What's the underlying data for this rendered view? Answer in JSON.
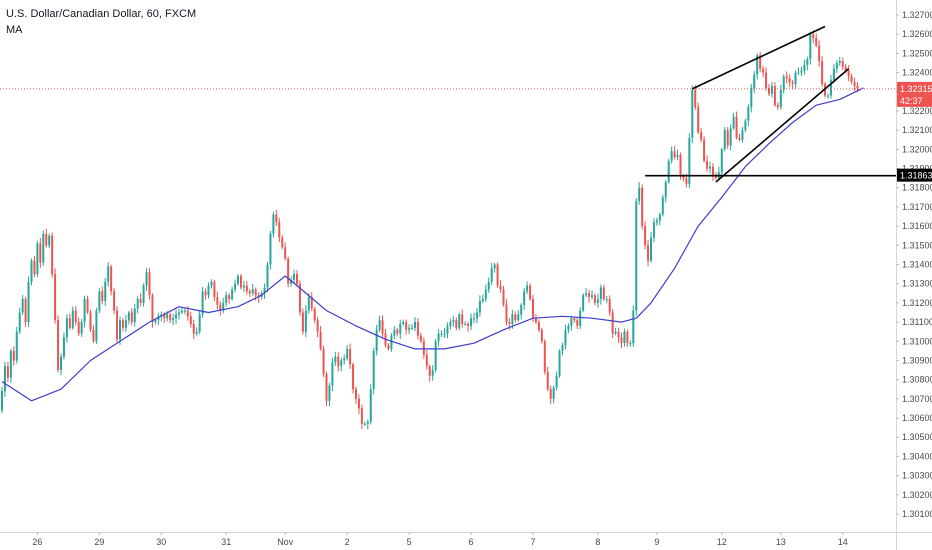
{
  "header": {
    "title": "U.S. Dollar/Canadian Dollar, 60, FXCM",
    "indicator": "MA"
  },
  "chart_data": {
    "type": "candlestick",
    "title": "U.S. Dollar/Canadian Dollar, 60, FXCM",
    "indicator": "MA",
    "ylim": [
      1.3005,
      1.3276
    ],
    "y_ticks": [
      "1.32700",
      "1.32600",
      "1.32500",
      "1.32400",
      "1.32300",
      "1.32200",
      "1.32100",
      "1.32000",
      "1.31900",
      "1.31800",
      "1.31700",
      "1.31600",
      "1.31500",
      "1.31400",
      "1.31300",
      "1.31200",
      "1.31100",
      "1.31000",
      "1.30900",
      "1.30800",
      "1.30700",
      "1.30600",
      "1.30500",
      "1.30400",
      "1.30300",
      "1.30200",
      "1.30100"
    ],
    "x_ticks": [
      {
        "label": "26",
        "bar": 12
      },
      {
        "label": "29",
        "bar": 33
      },
      {
        "label": "30",
        "bar": 54
      },
      {
        "label": "31",
        "bar": 76
      },
      {
        "label": "Nov",
        "bar": 96
      },
      {
        "label": "2",
        "bar": 117
      },
      {
        "label": "5",
        "bar": 138
      },
      {
        "label": "6",
        "bar": 159
      },
      {
        "label": "7",
        "bar": 180
      },
      {
        "label": "8",
        "bar": 202
      },
      {
        "label": "9",
        "bar": 222
      },
      {
        "label": "12",
        "bar": 244
      },
      {
        "label": "13",
        "bar": 264
      },
      {
        "label": "14",
        "bar": 285
      }
    ],
    "closes": [
      1.3074,
      1.3087,
      1.3081,
      1.3095,
      1.309,
      1.3105,
      1.3115,
      1.3122,
      1.311,
      1.3131,
      1.3142,
      1.3135,
      1.3151,
      1.3141,
      1.3156,
      1.315,
      1.3155,
      1.3135,
      1.3111,
      1.3085,
      1.3092,
      1.3102,
      1.3112,
      1.3107,
      1.3116,
      1.311,
      1.3104,
      1.311,
      1.3122,
      1.3115,
      1.3106,
      1.31,
      1.3116,
      1.3126,
      1.3121,
      1.3131,
      1.3139,
      1.3126,
      1.3116,
      1.3101,
      1.3111,
      1.3107,
      1.3111,
      1.3115,
      1.311,
      1.3117,
      1.3122,
      1.312,
      1.3129,
      1.3136,
      1.3124,
      1.311,
      1.3111,
      1.3113,
      1.3114,
      1.3112,
      1.3114,
      1.3111,
      1.3112,
      1.3114,
      1.3115,
      1.3116,
      1.3116,
      1.3113,
      1.3109,
      1.3104,
      1.3105,
      1.3114,
      1.3126,
      1.3124,
      1.3129,
      1.3131,
      1.3123,
      1.3119,
      1.3116,
      1.312,
      1.3124,
      1.3122,
      1.3127,
      1.313,
      1.3134,
      1.3128,
      1.3129,
      1.3126,
      1.3125,
      1.3127,
      1.3124,
      1.3123,
      1.3125,
      1.3128,
      1.314,
      1.3156,
      1.3166,
      1.3162,
      1.3154,
      1.3149,
      1.3143,
      1.313,
      1.3132,
      1.3135,
      1.313,
      1.3115,
      1.3105,
      1.3116,
      1.3123,
      1.3117,
      1.3111,
      1.3105,
      1.3096,
      1.3083,
      1.3069,
      1.3077,
      1.3089,
      1.3092,
      1.3087,
      1.309,
      1.3091,
      1.3096,
      1.3088,
      1.3075,
      1.307,
      1.3065,
      1.3057,
      1.3057,
      1.3058,
      1.3075,
      1.3095,
      1.3106,
      1.3111,
      1.3104,
      1.3098,
      1.3096,
      1.3103,
      1.3106,
      1.3104,
      1.3109,
      1.311,
      1.3106,
      1.3107,
      1.3107,
      1.311,
      1.3103,
      1.31,
      1.3093,
      1.3087,
      1.3082,
      1.3085,
      1.31,
      1.3104,
      1.3104,
      1.3104,
      1.3108,
      1.311,
      1.3111,
      1.3107,
      1.3114,
      1.3109,
      1.3109,
      1.3108,
      1.3112,
      1.3112,
      1.3115,
      1.3121,
      1.3122,
      1.3127,
      1.3131,
      1.3138,
      1.314,
      1.3129,
      1.3127,
      1.3119,
      1.311,
      1.3109,
      1.3114,
      1.3111,
      1.3114,
      1.3119,
      1.3126,
      1.3129,
      1.3122,
      1.3112,
      1.311,
      1.3106,
      1.31,
      1.3084,
      1.3075,
      1.307,
      1.3076,
      1.3082,
      1.3095,
      1.3098,
      1.3106,
      1.3108,
      1.3112,
      1.3111,
      1.3108,
      1.3116,
      1.3124,
      1.3125,
      1.3123,
      1.3124,
      1.312,
      1.3122,
      1.3128,
      1.3122,
      1.3122,
      1.3115,
      1.3104,
      1.3105,
      1.3102,
      1.3099,
      1.3105,
      1.3099,
      1.3099,
      1.3116,
      1.3173,
      1.318,
      1.316,
      1.315,
      1.3142,
      1.3154,
      1.3162,
      1.3163,
      1.3166,
      1.3175,
      1.3183,
      1.3194,
      1.3199,
      1.3196,
      1.3197,
      1.3186,
      1.3185,
      1.3182,
      1.3206,
      1.3231,
      1.3222,
      1.3209,
      1.3205,
      1.3194,
      1.319,
      1.3191,
      1.3186,
      1.3185,
      1.3188,
      1.32,
      1.321,
      1.3202,
      1.3211,
      1.3217,
      1.3206,
      1.3205,
      1.321,
      1.3215,
      1.3222,
      1.3232,
      1.3239,
      1.3249,
      1.3242,
      1.324,
      1.3232,
      1.3229,
      1.3233,
      1.3223,
      1.3222,
      1.3231,
      1.3238,
      1.3237,
      1.3235,
      1.3234,
      1.324,
      1.324,
      1.3241,
      1.3244,
      1.3247,
      1.326,
      1.3258,
      1.3254,
      1.3246,
      1.3234,
      1.3228,
      1.3228,
      1.3236,
      1.3242,
      1.3245,
      1.3246,
      1.3243,
      1.3241,
      1.3238,
      1.3235,
      1.3233,
      1.3232
    ],
    "ma": {
      "name": "MA",
      "color": "#3d3dcc",
      "anchors": [
        [
          0,
          1.3079
        ],
        [
          10,
          1.3069
        ],
        [
          20,
          1.3075
        ],
        [
          30,
          1.309
        ],
        [
          40,
          1.31
        ],
        [
          50,
          1.311
        ],
        [
          60,
          1.3118
        ],
        [
          70,
          1.3115
        ],
        [
          80,
          1.3118
        ],
        [
          88,
          1.3124
        ],
        [
          96,
          1.3134
        ],
        [
          100,
          1.3129
        ],
        [
          110,
          1.3116
        ],
        [
          120,
          1.3108
        ],
        [
          130,
          1.3101
        ],
        [
          140,
          1.3096
        ],
        [
          150,
          1.3096
        ],
        [
          160,
          1.3099
        ],
        [
          170,
          1.3106
        ],
        [
          180,
          1.3112
        ],
        [
          190,
          1.3113
        ],
        [
          200,
          1.3112
        ],
        [
          210,
          1.311
        ],
        [
          215,
          1.3112
        ],
        [
          220,
          1.312
        ],
        [
          228,
          1.3138
        ],
        [
          236,
          1.316
        ],
        [
          244,
          1.3175
        ],
        [
          252,
          1.3191
        ],
        [
          260,
          1.3203
        ],
        [
          268,
          1.3214
        ],
        [
          276,
          1.3223
        ],
        [
          284,
          1.3226
        ],
        [
          292,
          1.3232
        ]
      ]
    },
    "current_price": {
      "label": "1.32315",
      "value": 1.32315,
      "countdown": "42:37",
      "color": "#ef5350"
    },
    "horizontal_level": {
      "label": "1.31863",
      "value": 1.31863,
      "from_bar": 218
    },
    "wedge": {
      "upper": [
        [
          234,
          1.32315
        ],
        [
          279,
          1.3264
        ]
      ],
      "lower": [
        [
          242,
          1.3183
        ],
        [
          287,
          1.3242
        ]
      ]
    },
    "colors": {
      "up": "#26a69a",
      "down": "#ef5350",
      "axis_text": "#4a4a4a",
      "level": "#000000"
    }
  }
}
